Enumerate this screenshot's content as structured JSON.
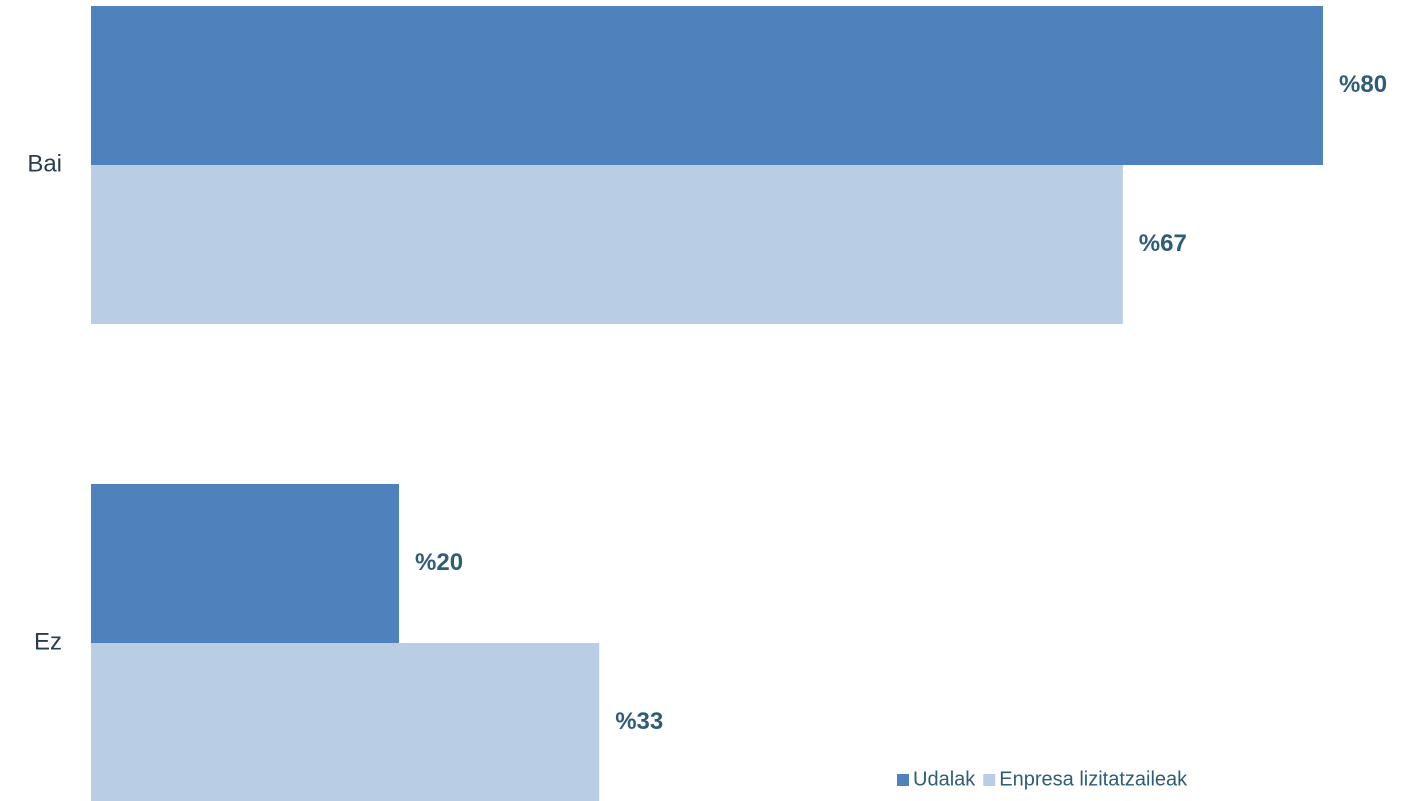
{
  "chart_data": {
    "type": "bar",
    "orientation": "horizontal",
    "categories": [
      "Bai",
      "Ez"
    ],
    "series": [
      {
        "name": "Udalak",
        "values": [
          80,
          20
        ],
        "labels": [
          "%80",
          "%20"
        ],
        "color": "#4f81bd"
      },
      {
        "name": "Enpresa lizitatzaileak",
        "values": [
          67,
          33
        ],
        "labels": [
          "%67",
          "%33"
        ],
        "color": "#b9cde5"
      }
    ],
    "xlim": [
      0,
      80
    ],
    "grid": false,
    "legend_position": "bottom-right",
    "title": "",
    "xlabel": "",
    "ylabel": ""
  }
}
